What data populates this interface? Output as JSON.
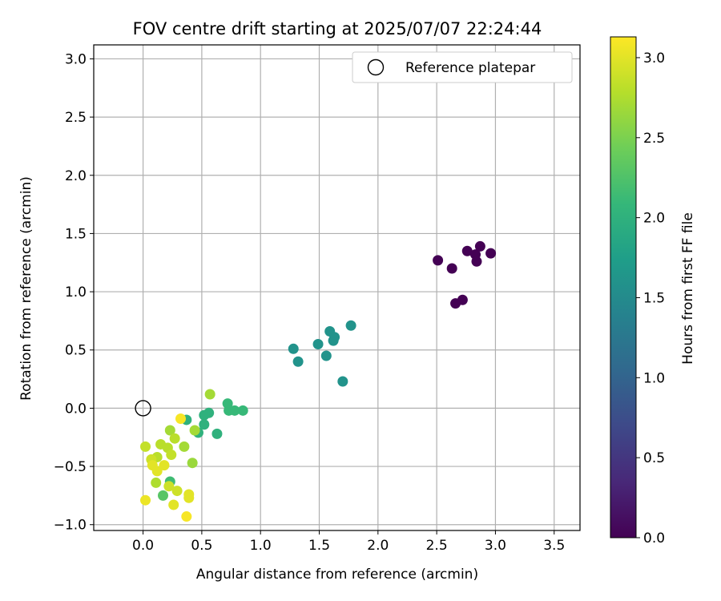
{
  "chart_data": {
    "type": "scatter",
    "title": "FOV centre drift starting at 2025/07/07 22:24:44",
    "xlabel": "Angular distance from reference (arcmin)",
    "ylabel": "Rotation from reference (arcmin)",
    "xlim": [
      -0.42,
      3.72
    ],
    "ylim": [
      -1.05,
      3.12
    ],
    "xticks": [
      0.0,
      0.5,
      1.0,
      1.5,
      2.0,
      2.5,
      3.0,
      3.5
    ],
    "yticks": [
      -1.0,
      -0.5,
      0.0,
      0.5,
      1.0,
      1.5,
      2.0,
      2.5,
      3.0
    ],
    "xtick_labels": [
      "0.0",
      "0.5",
      "1.0",
      "1.5",
      "2.0",
      "2.5",
      "3.0",
      "3.5"
    ],
    "ytick_labels": [
      "−1.0",
      "−0.5",
      "0.0",
      "0.5",
      "1.0",
      "1.5",
      "2.0",
      "2.5",
      "3.0"
    ],
    "grid": true,
    "legend": {
      "placement": "top-right",
      "entries": [
        "Reference platepar"
      ]
    },
    "reference_point": {
      "x": 0.0,
      "y": 0.0,
      "label": "Reference platepar"
    },
    "colorbar": {
      "label": "Hours from first FF file",
      "range": [
        0.0,
        3.13
      ],
      "ticks": [
        0.0,
        0.5,
        1.0,
        1.5,
        2.0,
        2.5,
        3.0
      ],
      "tick_labels": [
        "0.0",
        "0.5",
        "1.0",
        "1.5",
        "2.0",
        "2.5",
        "3.0"
      ],
      "colormap": "viridis"
    },
    "points": [
      {
        "x": 2.51,
        "y": 1.27,
        "t": 0.0
      },
      {
        "x": 2.63,
        "y": 1.2,
        "t": 0.0
      },
      {
        "x": 2.76,
        "y": 1.35,
        "t": 0.0
      },
      {
        "x": 2.83,
        "y": 1.32,
        "t": 0.0
      },
      {
        "x": 2.87,
        "y": 1.39,
        "t": 0.0
      },
      {
        "x": 2.84,
        "y": 1.26,
        "t": 0.0
      },
      {
        "x": 2.96,
        "y": 1.33,
        "t": 0.0
      },
      {
        "x": 2.66,
        "y": 0.9,
        "t": 0.0
      },
      {
        "x": 2.72,
        "y": 0.93,
        "t": 0.0
      },
      {
        "x": 1.28,
        "y": 0.51,
        "t": 1.6
      },
      {
        "x": 1.32,
        "y": 0.4,
        "t": 1.6
      },
      {
        "x": 1.49,
        "y": 0.55,
        "t": 1.6
      },
      {
        "x": 1.56,
        "y": 0.45,
        "t": 1.6
      },
      {
        "x": 1.59,
        "y": 0.66,
        "t": 1.6
      },
      {
        "x": 1.62,
        "y": 0.58,
        "t": 1.6
      },
      {
        "x": 1.63,
        "y": 0.61,
        "t": 1.6
      },
      {
        "x": 1.77,
        "y": 0.71,
        "t": 1.6
      },
      {
        "x": 1.7,
        "y": 0.23,
        "t": 1.6
      },
      {
        "x": 0.72,
        "y": 0.04,
        "t": 2.1
      },
      {
        "x": 0.73,
        "y": -0.02,
        "t": 2.1
      },
      {
        "x": 0.78,
        "y": -0.02,
        "t": 2.1
      },
      {
        "x": 0.85,
        "y": -0.02,
        "t": 2.1
      },
      {
        "x": 0.56,
        "y": -0.04,
        "t": 2.0
      },
      {
        "x": 0.52,
        "y": -0.06,
        "t": 2.0
      },
      {
        "x": 0.52,
        "y": -0.14,
        "t": 2.0
      },
      {
        "x": 0.47,
        "y": -0.21,
        "t": 2.0
      },
      {
        "x": 0.63,
        "y": -0.22,
        "t": 2.0
      },
      {
        "x": 0.37,
        "y": -0.1,
        "t": 2.0
      },
      {
        "x": 0.23,
        "y": -0.63,
        "t": 2.15
      },
      {
        "x": 0.17,
        "y": -0.75,
        "t": 2.3
      },
      {
        "x": 0.57,
        "y": 0.12,
        "t": 2.7
      },
      {
        "x": 0.44,
        "y": -0.19,
        "t": 2.7
      },
      {
        "x": 0.42,
        "y": -0.47,
        "t": 2.65
      },
      {
        "x": 0.35,
        "y": -0.33,
        "t": 2.7
      },
      {
        "x": 0.23,
        "y": -0.19,
        "t": 2.7
      },
      {
        "x": 0.27,
        "y": -0.26,
        "t": 2.8
      },
      {
        "x": 0.21,
        "y": -0.34,
        "t": 2.8
      },
      {
        "x": 0.24,
        "y": -0.4,
        "t": 2.85
      },
      {
        "x": 0.15,
        "y": -0.31,
        "t": 2.8
      },
      {
        "x": 0.12,
        "y": -0.42,
        "t": 2.8
      },
      {
        "x": 0.02,
        "y": -0.33,
        "t": 2.85
      },
      {
        "x": 0.07,
        "y": -0.44,
        "t": 2.9
      },
      {
        "x": 0.08,
        "y": -0.49,
        "t": 3.0
      },
      {
        "x": 0.12,
        "y": -0.54,
        "t": 3.0
      },
      {
        "x": 0.18,
        "y": -0.49,
        "t": 3.0
      },
      {
        "x": 0.11,
        "y": -0.64,
        "t": 2.75
      },
      {
        "x": 0.22,
        "y": -0.67,
        "t": 2.9
      },
      {
        "x": 0.29,
        "y": -0.71,
        "t": 2.9
      },
      {
        "x": 0.39,
        "y": -0.74,
        "t": 3.0
      },
      {
        "x": 0.39,
        "y": -0.77,
        "t": 3.0
      },
      {
        "x": 0.26,
        "y": -0.83,
        "t": 3.0
      },
      {
        "x": 0.37,
        "y": -0.93,
        "t": 3.1
      },
      {
        "x": 0.02,
        "y": -0.79,
        "t": 3.05
      },
      {
        "x": 0.32,
        "y": -0.09,
        "t": 3.1
      }
    ]
  }
}
